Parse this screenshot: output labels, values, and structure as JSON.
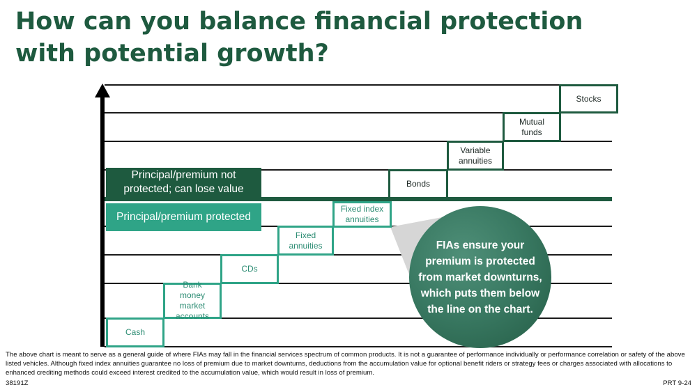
{
  "header": {
    "title": "How can you balance financial protection with potential growth?"
  },
  "legend": {
    "not_protected": "Principal/premium not protected; can lose value",
    "protected": "Principal/premium protected"
  },
  "steps": [
    {
      "label": "Cash",
      "zone": "protected"
    },
    {
      "label": "Bank money market accounts",
      "zone": "protected"
    },
    {
      "label": "CDs",
      "zone": "protected"
    },
    {
      "label": "Fixed annuities",
      "zone": "protected"
    },
    {
      "label": "Fixed index annuities",
      "zone": "protected"
    },
    {
      "label": "Bonds",
      "zone": "not_protected"
    },
    {
      "label": "Variable annuities",
      "zone": "not_protected"
    },
    {
      "label": "Mutual funds",
      "zone": "not_protected"
    },
    {
      "label": "Stocks",
      "zone": "not_protected"
    }
  ],
  "callout": {
    "text": "FIAs ensure your premium is protected from market downturns, which puts them below the line on the chart."
  },
  "colors": {
    "dark_green": "#1e5a3f",
    "teal": "#2fa487"
  },
  "footer": {
    "disclaimer": "The above chart is meant to serve as a general guide of where FIAs may fall in the financial services spectrum of common products. It is not a guarantee of performance individually or performance correlation or safety of the above listed vehicles. Although fixed index annuities guarantee no loss of premium due to market downturns, deductions from the accumulation value for optional benefit riders or strategy fees or charges associated with allocations to enhanced crediting methods could exceed interest credited to the accumulation value, which would result in loss of premium.",
    "code": "38191Z",
    "page_code": "PRT 9-24"
  }
}
